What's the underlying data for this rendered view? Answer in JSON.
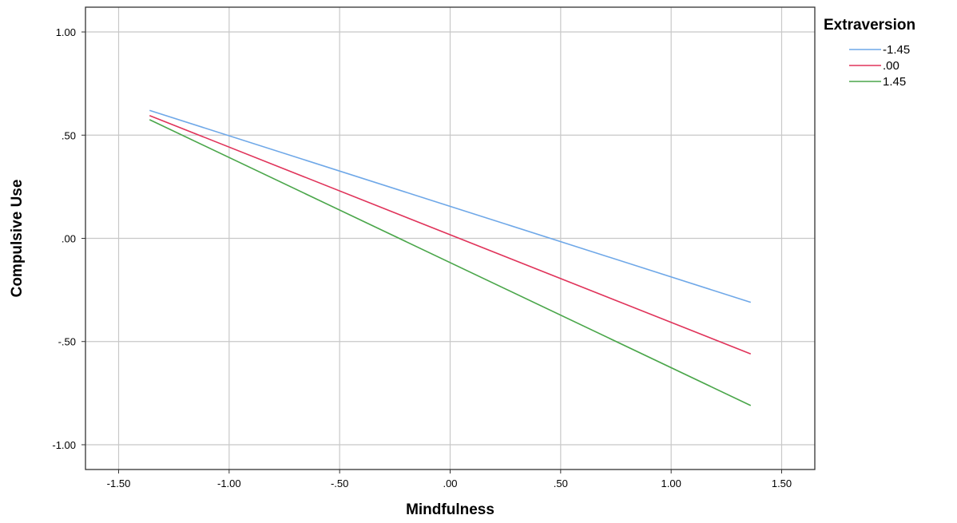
{
  "chart_data": {
    "type": "line",
    "xlabel": "Mindfulness",
    "ylabel": "Compulsive Use",
    "xlim": [
      -1.65,
      1.65
    ],
    "ylim": [
      -1.12,
      1.12
    ],
    "x_ticks": [
      -1.5,
      -1.0,
      -0.5,
      0.0,
      0.5,
      1.0,
      1.5
    ],
    "x_tick_labels": [
      "-1.50",
      "-1.00",
      "-.50",
      ".00",
      ".50",
      "1.00",
      "1.50"
    ],
    "y_ticks": [
      1.0,
      0.5,
      0.0,
      -0.5,
      -1.0
    ],
    "y_tick_labels": [
      "1.00",
      ".50",
      ".00",
      "-.50",
      "-1.00"
    ],
    "grid": true,
    "legend": {
      "title": "Extraversion",
      "placement": "top-right outside"
    },
    "series": [
      {
        "name": "-1.45",
        "color": "#6fa8e8",
        "x": [
          -1.36,
          1.36
        ],
        "y": [
          0.62,
          -0.31
        ]
      },
      {
        "name": ".00",
        "color": "#e0335a",
        "x": [
          -1.36,
          1.36
        ],
        "y": [
          0.595,
          -0.56
        ]
      },
      {
        "name": "1.45",
        "color": "#4aa64a",
        "x": [
          -1.36,
          1.36
        ],
        "y": [
          0.575,
          -0.81
        ]
      }
    ]
  }
}
